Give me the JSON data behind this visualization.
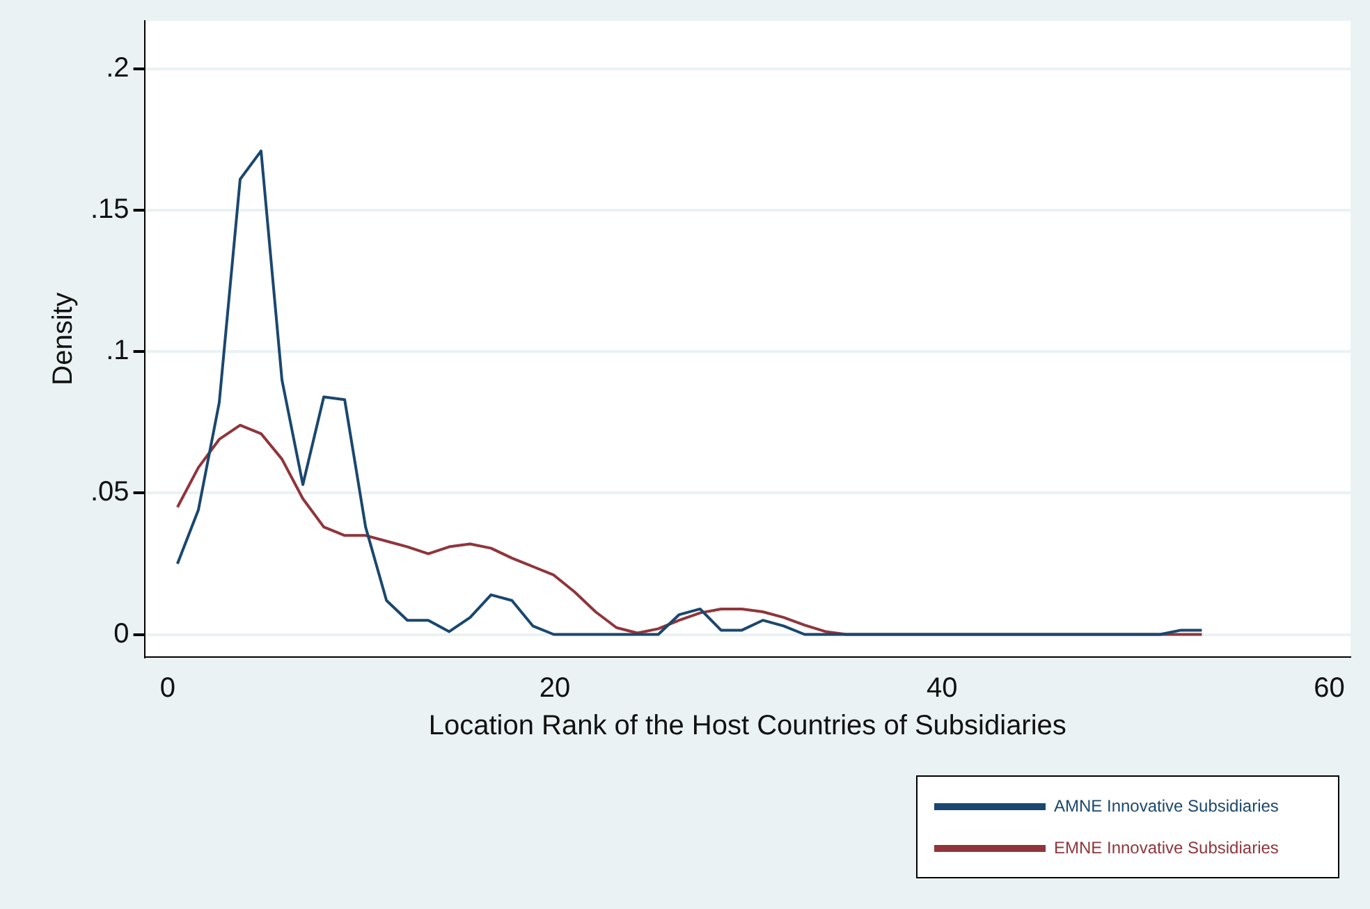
{
  "chart_data": {
    "type": "line",
    "xlabel": "Location Rank of the Host Countries of Subsidiaries",
    "ylabel": "Density",
    "x": [
      0.5,
      1.58,
      2.66,
      3.74,
      4.82,
      5.9,
      6.98,
      8.06,
      9.14,
      10.22,
      11.3,
      12.38,
      13.46,
      14.54,
      15.62,
      16.7,
      17.78,
      18.86,
      19.94,
      21.02,
      22.1,
      23.18,
      24.26,
      25.34,
      26.42,
      27.5,
      28.58,
      29.66,
      30.74,
      31.82,
      32.9,
      33.98,
      35.06,
      36.14,
      37.22,
      38.3,
      39.38,
      40.46,
      41.54,
      42.62,
      43.7,
      44.78,
      45.86,
      46.94,
      48.02,
      49.1,
      50.18,
      51.26,
      52.34,
      53.42
    ],
    "series": [
      {
        "name": "AMNE Innovative Subsidiaries",
        "color": "#1a476f",
        "values": [
          0.025,
          0.044,
          0.082,
          0.161,
          0.171,
          0.09,
          0.053,
          0.084,
          0.083,
          0.038,
          0.012,
          0.005,
          0.005,
          0.001,
          0.006,
          0.014,
          0.012,
          0.003,
          0,
          0,
          0,
          0,
          0,
          0,
          0.007,
          0.009,
          0.0015,
          0.0015,
          0.005,
          0.003,
          0,
          0,
          0,
          0,
          0,
          0,
          0,
          0,
          0,
          0,
          0,
          0,
          0,
          0,
          0,
          0,
          0,
          0,
          0.0015,
          0.0015
        ]
      },
      {
        "name": "EMNE Innovative Subsidiaries",
        "color": "#90353b",
        "values": [
          0.045,
          0.059,
          0.069,
          0.074,
          0.071,
          0.062,
          0.048,
          0.038,
          0.035,
          0.035,
          0.033,
          0.031,
          0.0285,
          0.031,
          0.032,
          0.0305,
          0.027,
          0.024,
          0.021,
          0.015,
          0.008,
          0.0024,
          0.0005,
          0.002,
          0.005,
          0.0076,
          0.009,
          0.009,
          0.008,
          0.006,
          0.0033,
          0.001,
          0,
          0,
          0,
          0,
          0,
          0,
          0,
          0,
          0,
          0,
          0,
          0,
          0,
          0,
          0,
          0,
          0,
          0
        ]
      }
    ],
    "xlim": [
      -1.2,
      61.1
    ],
    "xticks": [
      0,
      20,
      40,
      60
    ],
    "ylim": [
      -0.008,
      0.217
    ],
    "yticks": [
      {
        "value": 0,
        "label": "0"
      },
      {
        "value": 0.05,
        "label": ".05"
      },
      {
        "value": 0.1,
        "label": ".1"
      },
      {
        "value": 0.15,
        "label": ".15"
      },
      {
        "value": 0.2,
        "label": ".2"
      }
    ],
    "grid": "y",
    "legend": "bottom right",
    "marker": "none",
    "line_style": "solid"
  }
}
